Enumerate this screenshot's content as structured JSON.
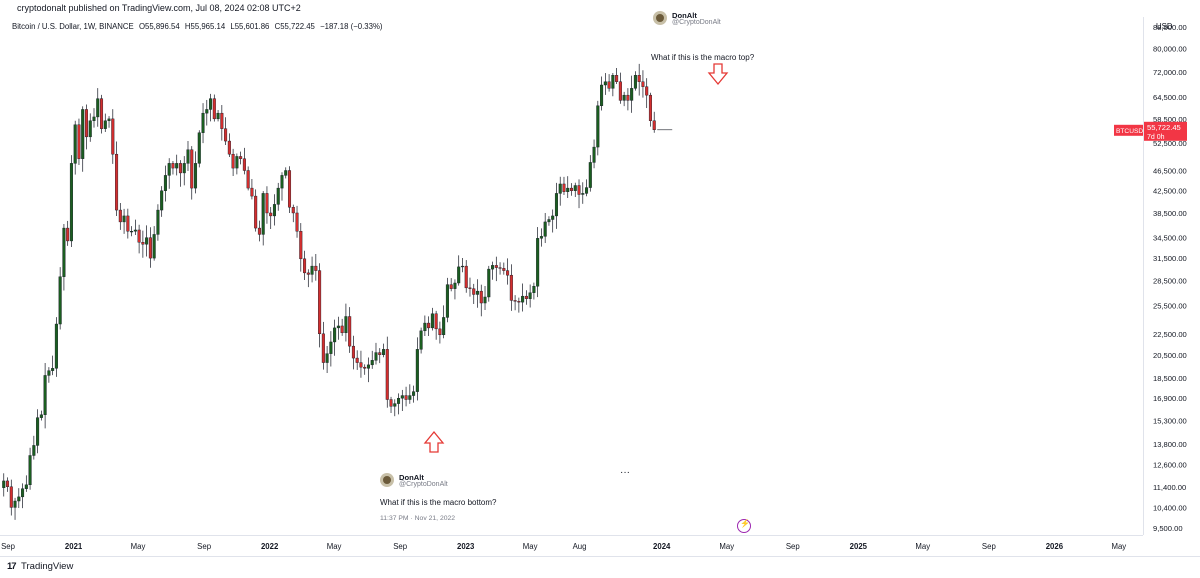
{
  "header": {
    "publisher": "cryptodonalt published on TradingView.com, Jul 08, 2024 02:08 UTC+2",
    "symbol": "Bitcoin / U.S. Dollar, 1W, BINANCE",
    "open": "O55,896.54",
    "high": "H55,965.14",
    "low": "L55,601.86",
    "close": "C55,722.45",
    "change": "−187.18 (−0.33%)"
  },
  "price_scale": {
    "currency": "USD",
    "last_symbol": "BTCUSD",
    "last_price": "55,722.45",
    "countdown": "7d 0h"
  },
  "footer": {
    "brand": "TradingView",
    "logo": "17"
  },
  "annotations": {
    "top_tweet": {
      "name": "DonAlt",
      "handle": "@CryptoDonAlt",
      "text": "What if this is the macro top?"
    },
    "bottom_tweet": {
      "name": "DonAlt",
      "handle": "@CryptoDonAlt",
      "text": "What if this is the macro bottom?",
      "time": "11:37 PM · Nov 21, 2022"
    },
    "more": "···",
    "arrow_color": "#e53935"
  },
  "chart_data": {
    "type": "candlestick",
    "log_scale": true,
    "grid": false,
    "colors": {
      "up": "#1b5e20",
      "down": "#d32f2f",
      "wick": "#131722",
      "last_price_label": "#f23645"
    },
    "y_ticks": [
      "88,000.00",
      "80,000.00",
      "72,000.00",
      "64,500.00",
      "58,500.00",
      "52,500.00",
      "46,500.00",
      "42,500.00",
      "38,500.00",
      "34,500.00",
      "31,500.00",
      "28,500.00",
      "25,500.00",
      "22,500.00",
      "20,500.00",
      "18,500.00",
      "16,900.00",
      "15,300.00",
      "13,800.00",
      "12,600.00",
      "11,400.00",
      "10,400.00",
      "9,500.00"
    ],
    "x_ticks": [
      {
        "label": "Sep",
        "date": "2020-09-01"
      },
      {
        "label": "2021",
        "date": "2021-01-01"
      },
      {
        "label": "May",
        "date": "2021-05-01"
      },
      {
        "label": "Sep",
        "date": "2021-09-01"
      },
      {
        "label": "2022",
        "date": "2022-01-01"
      },
      {
        "label": "May",
        "date": "2022-05-01"
      },
      {
        "label": "Sep",
        "date": "2022-09-01"
      },
      {
        "label": "2023",
        "date": "2023-01-01"
      },
      {
        "label": "May",
        "date": "2023-05-01"
      },
      {
        "label": "Aug",
        "date": "2023-08-01"
      },
      {
        "label": "2024",
        "date": "2024-01-01"
      },
      {
        "label": "May",
        "date": "2024-05-01"
      },
      {
        "label": "Sep",
        "date": "2024-09-01"
      },
      {
        "label": "2025",
        "date": "2025-01-01"
      },
      {
        "label": "May",
        "date": "2025-05-01"
      },
      {
        "label": "Sep",
        "date": "2025-09-01"
      },
      {
        "label": "2026",
        "date": "2026-01-01"
      },
      {
        "label": "May",
        "date": "2026-05-01"
      }
    ],
    "x_range": [
      "2020-08-17",
      "2026-06-15"
    ],
    "y_range": [
      9200,
      92000
    ],
    "last_price": 55722.45,
    "first_week": "2020-08-24",
    "close_path": [
      [
        0,
        11700
      ],
      [
        1,
        11400
      ],
      [
        2,
        10400
      ],
      [
        3,
        10700
      ],
      [
        4,
        10900
      ],
      [
        5,
        11300
      ],
      [
        6,
        11500
      ],
      [
        7,
        13100
      ],
      [
        8,
        13700
      ],
      [
        9,
        15500
      ],
      [
        10,
        15700
      ],
      [
        11,
        18700
      ],
      [
        12,
        19100
      ],
      [
        13,
        19300
      ],
      [
        14,
        23500
      ],
      [
        15,
        29000
      ],
      [
        16,
        36000
      ],
      [
        17,
        34000
      ],
      [
        18,
        48000
      ],
      [
        19,
        57000
      ],
      [
        20,
        49000
      ],
      [
        21,
        61000
      ],
      [
        22,
        54000
      ],
      [
        23,
        58000
      ],
      [
        24,
        59000
      ],
      [
        25,
        64000
      ],
      [
        26,
        56000
      ],
      [
        27,
        58000
      ],
      [
        28,
        58500
      ],
      [
        29,
        50000
      ],
      [
        30,
        39000
      ],
      [
        31,
        37000
      ],
      [
        32,
        38000
      ],
      [
        33,
        35500
      ],
      [
        34,
        35500
      ],
      [
        35,
        35700
      ],
      [
        36,
        33800
      ],
      [
        37,
        33500
      ],
      [
        38,
        34500
      ],
      [
        39,
        31500
      ],
      [
        40,
        35000
      ],
      [
        41,
        39000
      ],
      [
        42,
        42500
      ],
      [
        43,
        45500
      ],
      [
        44,
        48000
      ],
      [
        45,
        47000
      ],
      [
        46,
        48000
      ],
      [
        47,
        46000
      ],
      [
        48,
        48000
      ],
      [
        49,
        51000
      ],
      [
        50,
        43000
      ],
      [
        51,
        48000
      ],
      [
        52,
        55000
      ],
      [
        53,
        60000
      ],
      [
        54,
        61000
      ],
      [
        55,
        64000
      ],
      [
        56,
        58500
      ],
      [
        57,
        60000
      ],
      [
        58,
        56000
      ],
      [
        59,
        53000
      ],
      [
        60,
        50000
      ],
      [
        61,
        47000
      ],
      [
        62,
        49500
      ],
      [
        63,
        49000
      ],
      [
        64,
        46500
      ],
      [
        65,
        43000
      ],
      [
        66,
        41500
      ],
      [
        67,
        36000
      ],
      [
        68,
        35000
      ],
      [
        69,
        42000
      ],
      [
        70,
        38500
      ],
      [
        71,
        38000
      ],
      [
        72,
        40000
      ],
      [
        73,
        43000
      ],
      [
        74,
        45500
      ],
      [
        75,
        46500
      ],
      [
        76,
        39500
      ],
      [
        77,
        38500
      ],
      [
        78,
        35500
      ],
      [
        79,
        31400
      ],
      [
        80,
        29500
      ],
      [
        81,
        29300
      ],
      [
        82,
        30400
      ],
      [
        83,
        29800
      ],
      [
        84,
        22500
      ],
      [
        85,
        19800
      ],
      [
        86,
        20600
      ],
      [
        87,
        21700
      ],
      [
        88,
        23100
      ],
      [
        89,
        23300
      ],
      [
        90,
        22600
      ],
      [
        91,
        24300
      ],
      [
        92,
        21300
      ],
      [
        93,
        20200
      ],
      [
        94,
        19800
      ],
      [
        95,
        19400
      ],
      [
        96,
        19300
      ],
      [
        97,
        19600
      ],
      [
        98,
        20000
      ],
      [
        99,
        20700
      ],
      [
        100,
        20500
      ],
      [
        101,
        21000
      ],
      [
        102,
        16800
      ],
      [
        103,
        16300
      ],
      [
        104,
        16500
      ],
      [
        105,
        16900
      ],
      [
        106,
        17100
      ],
      [
        107,
        16800
      ],
      [
        108,
        17100
      ],
      [
        109,
        17400
      ],
      [
        110,
        21000
      ],
      [
        111,
        22800
      ],
      [
        112,
        23600
      ],
      [
        113,
        23100
      ],
      [
        114,
        24600
      ],
      [
        115,
        23000
      ],
      [
        116,
        22400
      ],
      [
        117,
        24200
      ],
      [
        118,
        28000
      ],
      [
        119,
        27500
      ],
      [
        120,
        28200
      ],
      [
        121,
        30300
      ],
      [
        122,
        30400
      ],
      [
        123,
        27600
      ],
      [
        124,
        27500
      ],
      [
        125,
        26800
      ],
      [
        126,
        27200
      ],
      [
        127,
        25800
      ],
      [
        128,
        26500
      ],
      [
        129,
        30000
      ],
      [
        130,
        30500
      ],
      [
        131,
        30200
      ],
      [
        132,
        30100
      ],
      [
        133,
        29800
      ],
      [
        134,
        29200
      ],
      [
        135,
        26100
      ],
      [
        136,
        26000
      ],
      [
        137,
        25900
      ],
      [
        138,
        26600
      ],
      [
        139,
        26300
      ],
      [
        140,
        27000
      ],
      [
        141,
        27800
      ],
      [
        142,
        34400
      ],
      [
        143,
        34700
      ],
      [
        144,
        37000
      ],
      [
        145,
        37400
      ],
      [
        146,
        38000
      ],
      [
        147,
        42000
      ],
      [
        148,
        43800
      ],
      [
        149,
        42300
      ],
      [
        150,
        43000
      ],
      [
        151,
        42500
      ],
      [
        152,
        43500
      ],
      [
        153,
        41800
      ],
      [
        154,
        42000
      ],
      [
        155,
        43100
      ],
      [
        156,
        48200
      ],
      [
        157,
        51600
      ],
      [
        158,
        62000
      ],
      [
        159,
        68000
      ],
      [
        160,
        69000
      ],
      [
        161,
        67000
      ],
      [
        162,
        71000
      ],
      [
        163,
        69000
      ],
      [
        164,
        63500
      ],
      [
        165,
        65000
      ],
      [
        166,
        63500
      ],
      [
        167,
        67000
      ],
      [
        168,
        71000
      ],
      [
        169,
        69000
      ],
      [
        170,
        67500
      ],
      [
        171,
        65000
      ],
      [
        172,
        58000
      ],
      [
        173,
        55722
      ]
    ]
  }
}
